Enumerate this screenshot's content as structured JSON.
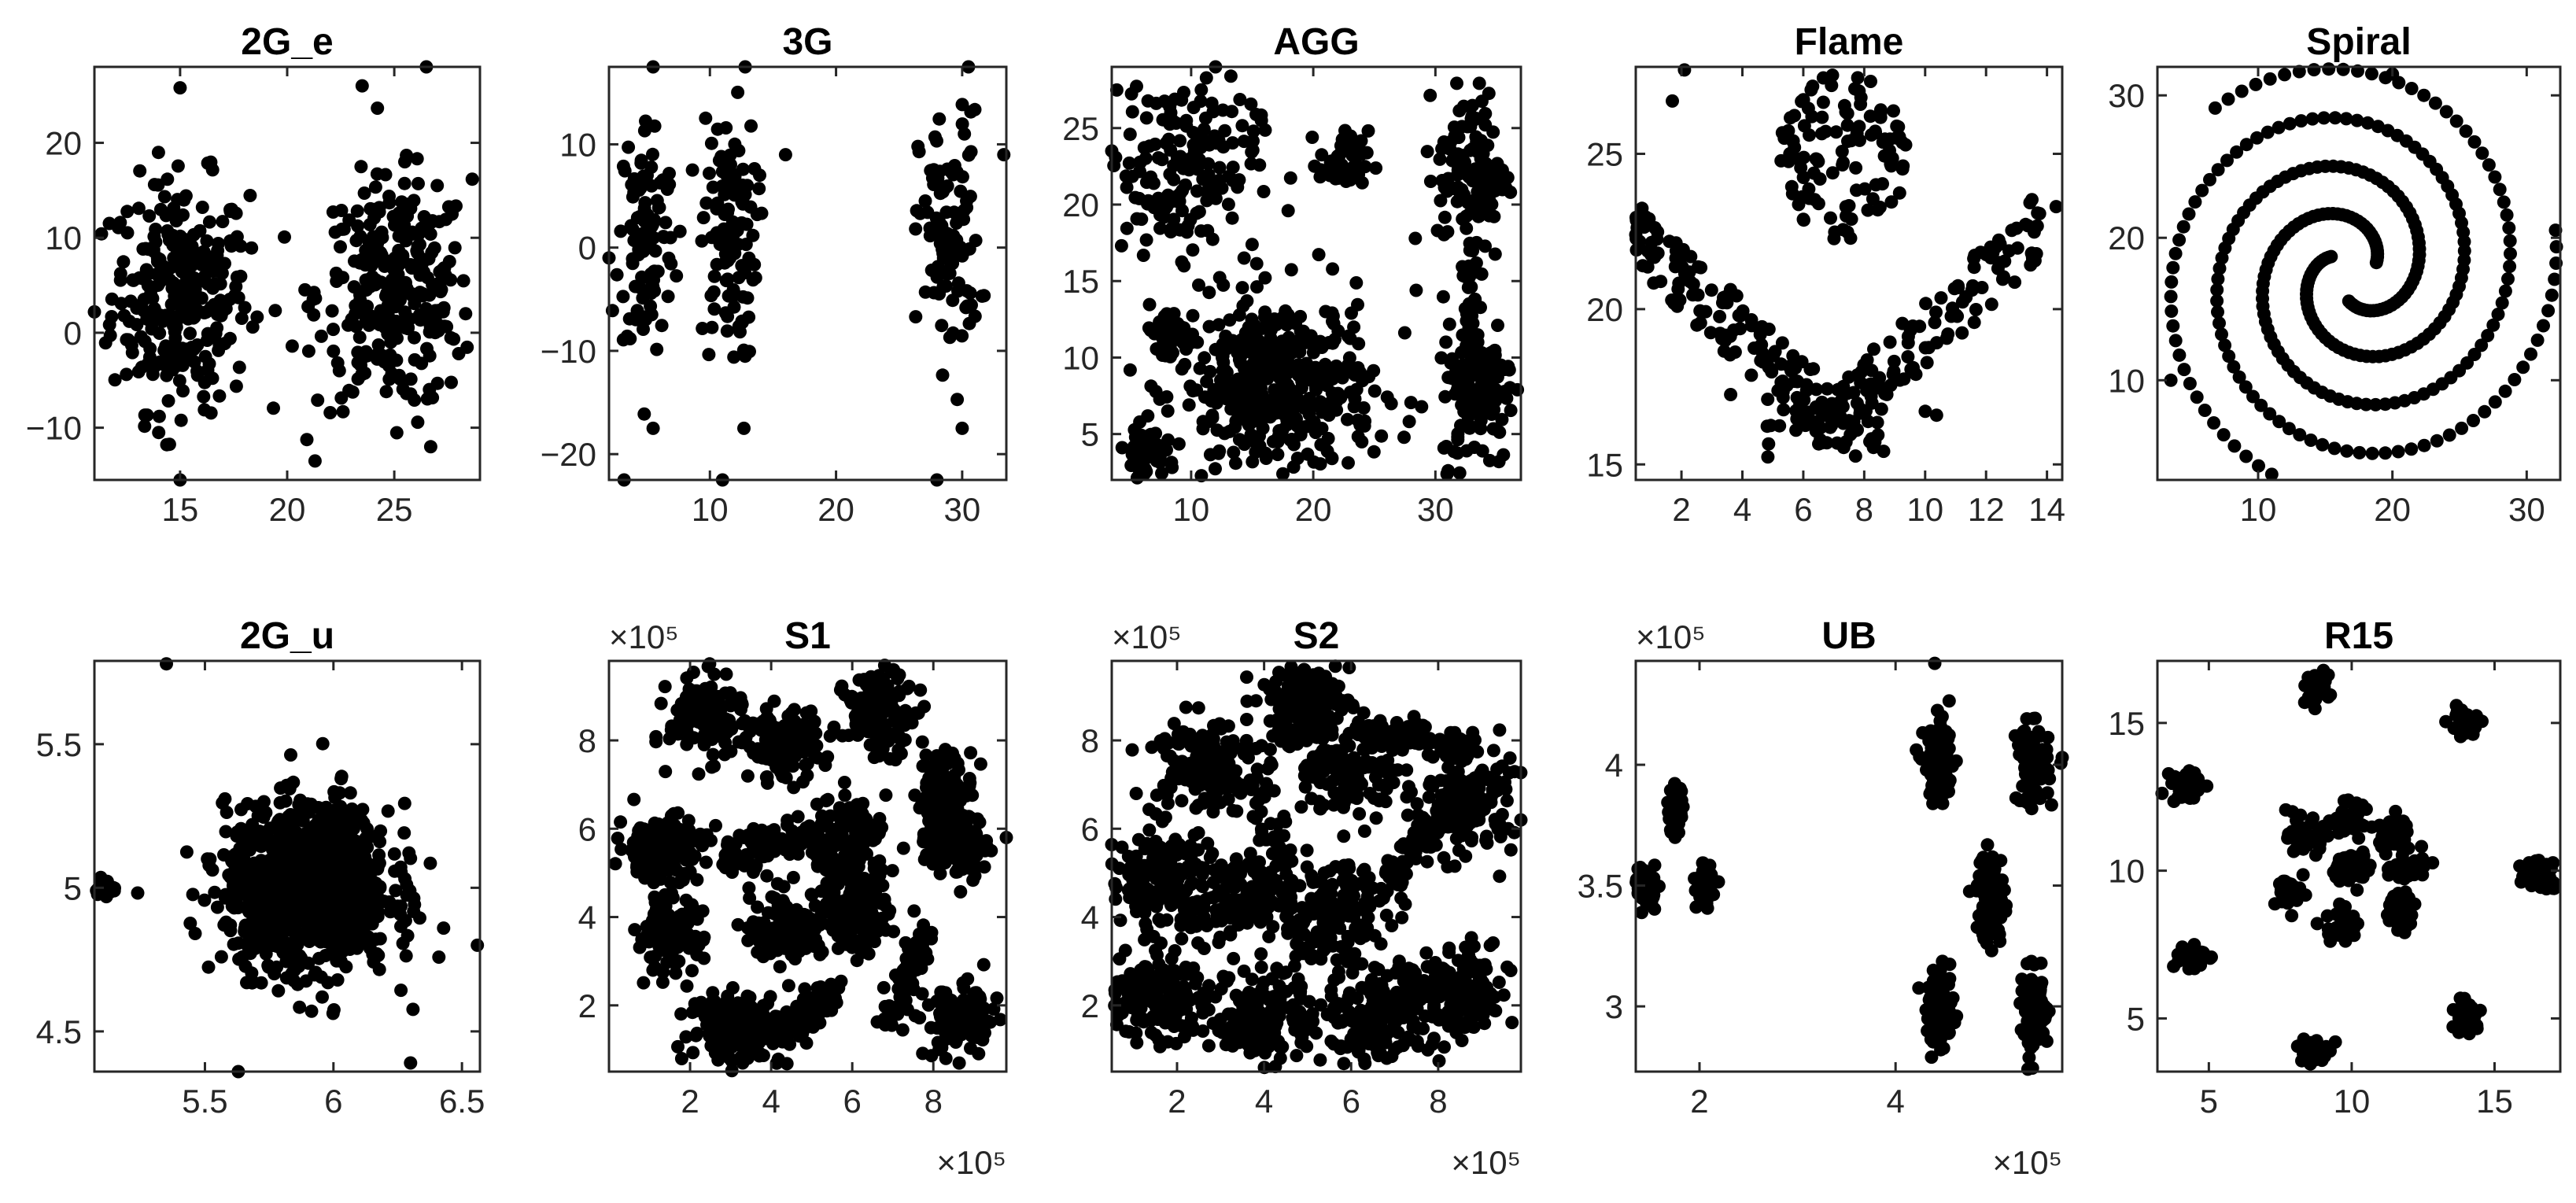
{
  "colors": {
    "points": "#000000",
    "axes": "#262626",
    "background": "#ffffff"
  },
  "chart_data": [
    {
      "type": "scatter",
      "title": "2G_e",
      "xlim": [
        11,
        29
      ],
      "ylim": [
        -15.5,
        28
      ],
      "xticks": [
        15,
        20,
        25
      ],
      "yticks": [
        -10,
        0,
        10,
        20
      ],
      "gen": {
        "clusters": [
          {
            "cx": 15,
            "cy": 4,
            "sx": 1.6,
            "sy": 6,
            "n": 300
          },
          {
            "cx": 25,
            "cy": 4,
            "sx": 1.8,
            "sy": 6,
            "n": 300
          }
        ]
      },
      "points": [
        [
          11,
          2.2
        ],
        [
          15,
          25.8
        ],
        [
          26.5,
          28
        ],
        [
          23.5,
          26
        ],
        [
          21.3,
          -13.5
        ],
        [
          15,
          -15.5
        ],
        [
          14,
          -10.5
        ],
        [
          26.7,
          -12
        ]
      ]
    },
    {
      "type": "scatter",
      "title": "3G",
      "xlim": [
        2,
        33.5
      ],
      "ylim": [
        -22.5,
        17.5
      ],
      "xticks": [
        10,
        20,
        30
      ],
      "yticks": [
        -20,
        -10,
        0,
        10
      ],
      "gen": {
        "clusters": [
          {
            "cx": 5,
            "cy": 1,
            "sx": 1.1,
            "sy": 6,
            "n": 110
          },
          {
            "cx": 11.5,
            "cy": 1,
            "sx": 1.1,
            "sy": 6,
            "n": 110
          },
          {
            "cx": 29,
            "cy": 1,
            "sx": 1.2,
            "sy": 6,
            "n": 110
          }
        ]
      },
      "points": [
        [
          5.5,
          17.5
        ],
        [
          12.8,
          17.5
        ],
        [
          30.5,
          17.5
        ],
        [
          3.2,
          -22.5
        ],
        [
          11,
          -22.5
        ],
        [
          28,
          -22.5
        ],
        [
          33.3,
          9
        ],
        [
          2,
          -1
        ],
        [
          5.5,
          -17.5
        ],
        [
          12.7,
          -17.5
        ],
        [
          30,
          -17.5
        ],
        [
          16,
          9
        ]
      ]
    },
    {
      "type": "scatter",
      "title": "AGG",
      "xlim": [
        3.5,
        37
      ],
      "ylim": [
        2,
        29
      ],
      "xticks": [
        10,
        20,
        30
      ],
      "yticks": [
        5,
        10,
        15,
        20,
        25
      ],
      "gen": {
        "clusters": [
          {
            "cx": 17,
            "cy": 8,
            "sx": 4,
            "sy": 3,
            "n": 430
          },
          {
            "cx": 9,
            "cy": 22.5,
            "sx": 3.2,
            "sy": 2.8,
            "n": 180
          },
          {
            "cx": 22.5,
            "cy": 22.8,
            "sx": 1,
            "sy": 1,
            "n": 45
          },
          {
            "cx": 33,
            "cy": 22,
            "sx": 1.4,
            "sy": 2.8,
            "n": 130
          },
          {
            "cx": 33.5,
            "cy": 8.5,
            "sx": 1.5,
            "sy": 2.8,
            "n": 140
          },
          {
            "cx": 6.2,
            "cy": 3.8,
            "sx": 0.8,
            "sy": 0.8,
            "n": 50
          },
          {
            "cx": 8,
            "cy": 11.5,
            "sx": 1,
            "sy": 0.9,
            "n": 40
          },
          {
            "cx": 33,
            "cy": 15.5,
            "sx": 0.3,
            "sy": 1.3,
            "n": 15
          }
        ]
      },
      "points": [
        [
          3.5,
          23.5
        ],
        [
          12,
          29
        ],
        [
          10.5,
          11
        ]
      ]
    },
    {
      "type": "scatter",
      "title": "Flame",
      "xlim": [
        0.5,
        14.5
      ],
      "ylim": [
        14.5,
        27.8
      ],
      "xticks": [
        2,
        4,
        6,
        8,
        10,
        12,
        14
      ],
      "yticks": [
        15,
        20,
        25
      ],
      "gen": {
        "flame": true
      },
      "points": [
        [
          2.1,
          27.7
        ],
        [
          1.7,
          26.7
        ],
        [
          0.5,
          22.4
        ],
        [
          14.3,
          23.3
        ]
      ]
    },
    {
      "type": "scatter",
      "title": "Spiral",
      "xlim": [
        2.5,
        32.5
      ],
      "ylim": [
        3,
        32
      ],
      "xticks": [
        10,
        20,
        30
      ],
      "yticks": [
        10,
        20,
        30
      ],
      "gen": {
        "spiral": true
      },
      "points": [
        [
          20,
          31.5
        ],
        [
          3.5,
          10
        ]
      ]
    },
    {
      "type": "scatter",
      "title": "2G_u",
      "xlim": [
        5.07,
        6.57
      ],
      "ylim": [
        4.36,
        5.79
      ],
      "xticks": [
        5.5,
        6,
        6.5
      ],
      "yticks": [
        4.5,
        5,
        5.5
      ],
      "gen": {
        "clusters": [
          {
            "cx": 5.9,
            "cy": 5,
            "sx": 0.16,
            "sy": 0.14,
            "n": 1100
          },
          {
            "cx": 5.11,
            "cy": 5,
            "sx": 0.03,
            "sy": 0.02,
            "n": 25
          }
        ]
      },
      "points": [
        [
          5.35,
          5.78
        ],
        [
          5.63,
          4.36
        ],
        [
          6.3,
          4.39
        ],
        [
          6.56,
          4.8
        ]
      ]
    },
    {
      "type": "scatter",
      "title": "S1",
      "xlim": [
        0,
        9.8
      ],
      "ylim": [
        0.5,
        9.8
      ],
      "xticks": [
        2,
        4,
        6,
        8
      ],
      "yticks": [
        2,
        4,
        6,
        8
      ],
      "multiplier": "×10⁵",
      "x_exponent_label": "×10⁵",
      "y_exponent_label": "×10⁵",
      "gen": {
        "clusters": [
          {
            "cx": 2.4,
            "cy": 8.5,
            "sx": 0.45,
            "sy": 0.45,
            "n": 140
          },
          {
            "cx": 4.3,
            "cy": 7.9,
            "sx": 0.45,
            "sy": 0.4,
            "n": 130
          },
          {
            "cx": 6.7,
            "cy": 8.6,
            "sx": 0.45,
            "sy": 0.45,
            "n": 140
          },
          {
            "cx": 8.3,
            "cy": 6.7,
            "sx": 0.35,
            "sy": 0.55,
            "n": 130
          },
          {
            "cx": 8.6,
            "cy": 5.6,
            "sx": 0.35,
            "sy": 0.35,
            "n": 120
          },
          {
            "cx": 1.3,
            "cy": 5.6,
            "sx": 0.55,
            "sy": 0.35,
            "n": 150
          },
          {
            "cx": 1.5,
            "cy": 3.6,
            "sx": 0.4,
            "sy": 0.45,
            "n": 120
          },
          {
            "cx": 3.1,
            "cy": 1.5,
            "sx": 0.55,
            "sy": 0.4,
            "n": 150
          },
          {
            "cx": 4.4,
            "cy": 3.8,
            "sx": 0.45,
            "sy": 0.4,
            "n": 130
          },
          {
            "cx": 5.9,
            "cy": 5.6,
            "sx": 0.5,
            "sy": 0.55,
            "n": 150
          },
          {
            "cx": 6.1,
            "cy": 4.0,
            "sx": 0.4,
            "sy": 0.4,
            "n": 130
          },
          {
            "cx": 8.7,
            "cy": 1.6,
            "sx": 0.45,
            "sy": 0.4,
            "n": 130
          }
        ],
        "lines": [
          {
            "x1": 2.8,
            "y1": 5.3,
            "x2": 5.0,
            "y2": 5.9,
            "n": 90,
            "w": 0.18
          },
          {
            "x1": 3.9,
            "y1": 1.2,
            "x2": 5.6,
            "y2": 2.3,
            "n": 100,
            "w": 0.22
          },
          {
            "x1": 6.9,
            "y1": 1.6,
            "x2": 7.8,
            "y2": 3.7,
            "n": 70,
            "w": 0.14
          }
        ]
      },
      "points": [
        [
          6.8,
          9.7
        ],
        [
          9.8,
          5.8
        ]
      ]
    },
    {
      "type": "scatter",
      "title": "S2",
      "xlim": [
        0.5,
        9.9
      ],
      "ylim": [
        0.5,
        9.8
      ],
      "xticks": [
        2,
        4,
        6,
        8
      ],
      "yticks": [
        2,
        4,
        6,
        8
      ],
      "multiplier": "×10⁵",
      "x_exponent_label": "×10⁵",
      "y_exponent_label": "×10⁵",
      "gen": {
        "clusters": [
          {
            "cx": 4.9,
            "cy": 8.8,
            "sx": 0.55,
            "sy": 0.5,
            "n": 150
          },
          {
            "cx": 2.6,
            "cy": 7.5,
            "sx": 0.6,
            "sy": 0.55,
            "n": 150
          },
          {
            "cx": 6.0,
            "cy": 7.2,
            "sx": 0.5,
            "sy": 0.5,
            "n": 120
          },
          {
            "cx": 8.6,
            "cy": 6.6,
            "sx": 0.55,
            "sy": 0.6,
            "n": 150
          },
          {
            "cx": 1.6,
            "cy": 4.9,
            "sx": 0.6,
            "sy": 0.6,
            "n": 150
          },
          {
            "cx": 5.6,
            "cy": 4.1,
            "sx": 0.6,
            "sy": 0.55,
            "n": 150
          },
          {
            "cx": 1.4,
            "cy": 2.2,
            "sx": 0.6,
            "sy": 0.5,
            "n": 150
          },
          {
            "cx": 4.0,
            "cy": 1.8,
            "sx": 0.6,
            "sy": 0.55,
            "n": 160
          },
          {
            "cx": 6.6,
            "cy": 1.7,
            "sx": 0.6,
            "sy": 0.55,
            "n": 170
          },
          {
            "cx": 8.4,
            "cy": 2.2,
            "sx": 0.6,
            "sy": 0.55,
            "n": 160
          },
          {
            "cx": 3.3,
            "cy": 4.4,
            "sx": 0.6,
            "sy": 0.45,
            "n": 130
          }
        ],
        "lines": [
          {
            "x1": 3.8,
            "y1": 7.0,
            "x2": 5.0,
            "y2": 3.0,
            "n": 80,
            "w": 0.2
          },
          {
            "x1": 6.2,
            "y1": 8.3,
            "x2": 8.8,
            "y2": 7.8,
            "n": 90,
            "w": 0.2
          },
          {
            "x1": 6.5,
            "y1": 4.5,
            "x2": 8.2,
            "y2": 6.5,
            "n": 80,
            "w": 0.2
          }
        ]
      },
      "points": [
        [
          9.9,
          6.2
        ],
        [
          0.9,
          1.4
        ]
      ]
    },
    {
      "type": "scatter",
      "title": "UB",
      "xlim": [
        1.35,
        5.7
      ],
      "ylim": [
        2.73,
        4.43
      ],
      "xticks": [
        2,
        4
      ],
      "yticks": [
        3,
        3.5,
        4
      ],
      "multiplier": "×10⁵",
      "x_exponent_label": "×10⁵",
      "y_exponent_label": "×10⁵",
      "gen": {
        "clusters": [
          {
            "cx": 1.45,
            "cy": 3.5,
            "sx": 0.05,
            "sy": 0.04,
            "n": 70
          },
          {
            "cx": 1.75,
            "cy": 3.81,
            "sx": 0.04,
            "sy": 0.045,
            "n": 50
          },
          {
            "cx": 2.05,
            "cy": 3.5,
            "sx": 0.04,
            "sy": 0.045,
            "n": 50
          },
          {
            "cx": 4.45,
            "cy": 4.0,
            "sx": 0.08,
            "sy": 0.08,
            "n": 110
          },
          {
            "cx": 5.4,
            "cy": 4.0,
            "sx": 0.08,
            "sy": 0.08,
            "n": 110
          },
          {
            "cx": 4.97,
            "cy": 3.45,
            "sx": 0.07,
            "sy": 0.1,
            "n": 100
          },
          {
            "cx": 4.45,
            "cy": 2.98,
            "sx": 0.07,
            "sy": 0.08,
            "n": 100
          },
          {
            "cx": 5.42,
            "cy": 2.98,
            "sx": 0.07,
            "sy": 0.08,
            "n": 100
          }
        ]
      },
      "points": [
        [
          4.4,
          4.42
        ],
        [
          5.35,
          2.74
        ],
        [
          5.7,
          4.03
        ]
      ]
    },
    {
      "type": "scatter",
      "title": "R15",
      "xlim": [
        3.2,
        17.3
      ],
      "ylim": [
        3.2,
        17.1
      ],
      "xticks": [
        5,
        10,
        15
      ],
      "yticks": [
        5,
        10,
        15
      ],
      "gen": {
        "clusters": [
          {
            "cx": 4.3,
            "cy": 12.9,
            "sx": 0.3,
            "sy": 0.3,
            "n": 40
          },
          {
            "cx": 8.7,
            "cy": 16.2,
            "sx": 0.25,
            "sy": 0.25,
            "n": 40
          },
          {
            "cx": 14.0,
            "cy": 15.0,
            "sx": 0.3,
            "sy": 0.25,
            "n": 40
          },
          {
            "cx": 16.7,
            "cy": 10.0,
            "sx": 0.3,
            "sy": 0.3,
            "n": 40
          },
          {
            "cx": 4.3,
            "cy": 7.1,
            "sx": 0.3,
            "sy": 0.25,
            "n": 40
          },
          {
            "cx": 8.6,
            "cy": 3.9,
            "sx": 0.25,
            "sy": 0.25,
            "n": 40
          },
          {
            "cx": 14.0,
            "cy": 5.0,
            "sx": 0.3,
            "sy": 0.3,
            "n": 40
          },
          {
            "cx": 10.0,
            "cy": 10.1,
            "sx": 0.3,
            "sy": 0.3,
            "n": 40
          },
          {
            "cx": 8.0,
            "cy": 9.3,
            "sx": 0.3,
            "sy": 0.3,
            "n": 40
          },
          {
            "cx": 8.4,
            "cy": 11.1,
            "sx": 0.3,
            "sy": 0.3,
            "n": 40
          },
          {
            "cx": 9.8,
            "cy": 11.8,
            "sx": 0.3,
            "sy": 0.25,
            "n": 40
          },
          {
            "cx": 11.4,
            "cy": 11.3,
            "sx": 0.3,
            "sy": 0.3,
            "n": 40
          },
          {
            "cx": 12.0,
            "cy": 10.0,
            "sx": 0.3,
            "sy": 0.3,
            "n": 40
          },
          {
            "cx": 11.6,
            "cy": 8.6,
            "sx": 0.3,
            "sy": 0.3,
            "n": 40
          },
          {
            "cx": 9.7,
            "cy": 8.1,
            "sx": 0.3,
            "sy": 0.3,
            "n": 40
          }
        ]
      },
      "points": []
    }
  ]
}
